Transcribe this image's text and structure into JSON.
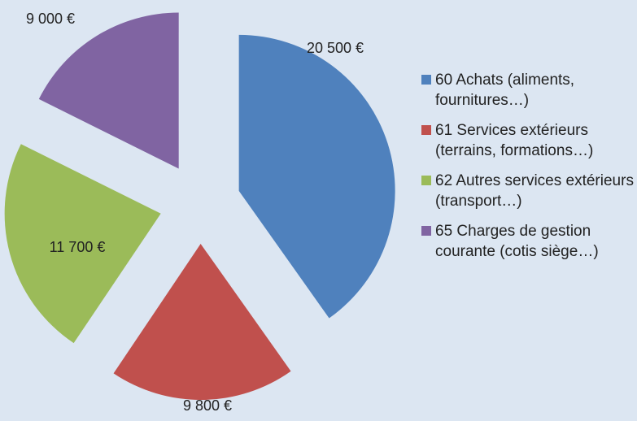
{
  "chart_data": {
    "type": "pie",
    "categories": [
      "60 Achats (aliments, fournitures…)",
      "61 Services extérieurs (terrains, formations…)",
      "62 Autres services extérieurs (transport…)",
      "65 Charges de gestion courante (cotis siège…)"
    ],
    "values": [
      20500,
      9800,
      11700,
      9000
    ],
    "value_labels": [
      "20 500 €",
      "9 800 €",
      "11 700 €",
      "9 000 €"
    ],
    "colors": [
      "#4f81bd",
      "#c0504d",
      "#9bbb59",
      "#8064a2"
    ],
    "legend": "right"
  }
}
